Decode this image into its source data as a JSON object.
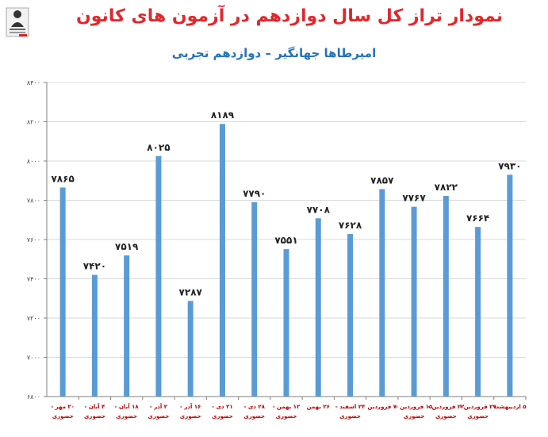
{
  "header": {
    "title": "نمودار تراز کل سال دوازدهم در آزمون های کانون",
    "subtitle": "امیرطاها جهانگیر – دوازدهم تجربی"
  },
  "colors": {
    "bar": "#5b9bd5",
    "title": "#e3262b",
    "subtitle": "#2473b9",
    "grid": "#d9d9d9",
    "tick_x": "#c00000"
  },
  "chart_data": {
    "type": "bar",
    "title": "نمودار تراز کل سال دوازدهم در آزمون های کانون",
    "subtitle": "امیرطاها جهانگیر – دوازدهم تجربی",
    "categories": [
      "۲۰ مهر - حضوری",
      "۴ آبان - حضوری",
      "۱۸ آبان - حضوری",
      "۲ آذر - حضوری",
      "۱۶ آذر - حضوری",
      "۲۱ دی - حضوری",
      "۲۸ دی - حضوری",
      "۱۲ بهمن - حضوری",
      "۲۶ بهمن",
      "۲۴ اسفند - حضوری",
      "۷ فروردین",
      "۱۵ فروردین - حضوری",
      "۲۲ فروردین - حضوری",
      "۲۹ فروردین - حضوری",
      "۵ اردیبهشت"
    ],
    "category_lines": [
      [
        "۲۰ مهر -",
        "حضوری"
      ],
      [
        "۴ آبان -",
        "حضوری"
      ],
      [
        "۱۸ آبان -",
        "حضوری"
      ],
      [
        "۲ آذر -",
        "حضوری"
      ],
      [
        "۱۶ آذر -",
        "حضوری"
      ],
      [
        "۲۱ دی -",
        "حضوری"
      ],
      [
        "۲۸ دی -",
        "حضوری"
      ],
      [
        "۱۲ بهمن -",
        "حضوری"
      ],
      [
        "۲۶ بهمن",
        ""
      ],
      [
        "۲۴ اسفند -",
        "حضوری"
      ],
      [
        "۷ فروردین",
        ""
      ],
      [
        "۱۵ فروردین -",
        "حضوری"
      ],
      [
        "۲۲ فروردین -",
        "حضوری"
      ],
      [
        "۲۹ فروردین -",
        "حضوری"
      ],
      [
        "۵ اردیبهشت",
        ""
      ]
    ],
    "values": [
      7865,
      7420,
      7519,
      8025,
      7287,
      8189,
      7790,
      7551,
      7708,
      7628,
      7857,
      7767,
      7822,
      7664,
      7930
    ],
    "value_labels": [
      "۷۸۶۵",
      "۷۴۲۰",
      "۷۵۱۹",
      "۸۰۲۵",
      "۷۲۸۷",
      "۸۱۸۹",
      "۷۷۹۰",
      "۷۵۵۱",
      "۷۷۰۸",
      "۷۶۲۸",
      "۷۸۵۷",
      "۷۷۶۷",
      "۷۸۲۲",
      "۷۶۶۴",
      "۷۹۳۰"
    ],
    "ylim": [
      6800,
      8400
    ],
    "yticks": [
      6800,
      7000,
      7200,
      7400,
      7600,
      7800,
      8000,
      8200,
      8400
    ],
    "ytick_labels": [
      "۶۸۰۰",
      "۷۰۰۰",
      "۷۲۰۰",
      "۷۴۰۰",
      "۷۶۰۰",
      "۷۸۰۰",
      "۸۰۰۰",
      "۸۲۰۰",
      "۸۴۰۰"
    ],
    "grid": true,
    "xlabel": "",
    "ylabel": ""
  }
}
